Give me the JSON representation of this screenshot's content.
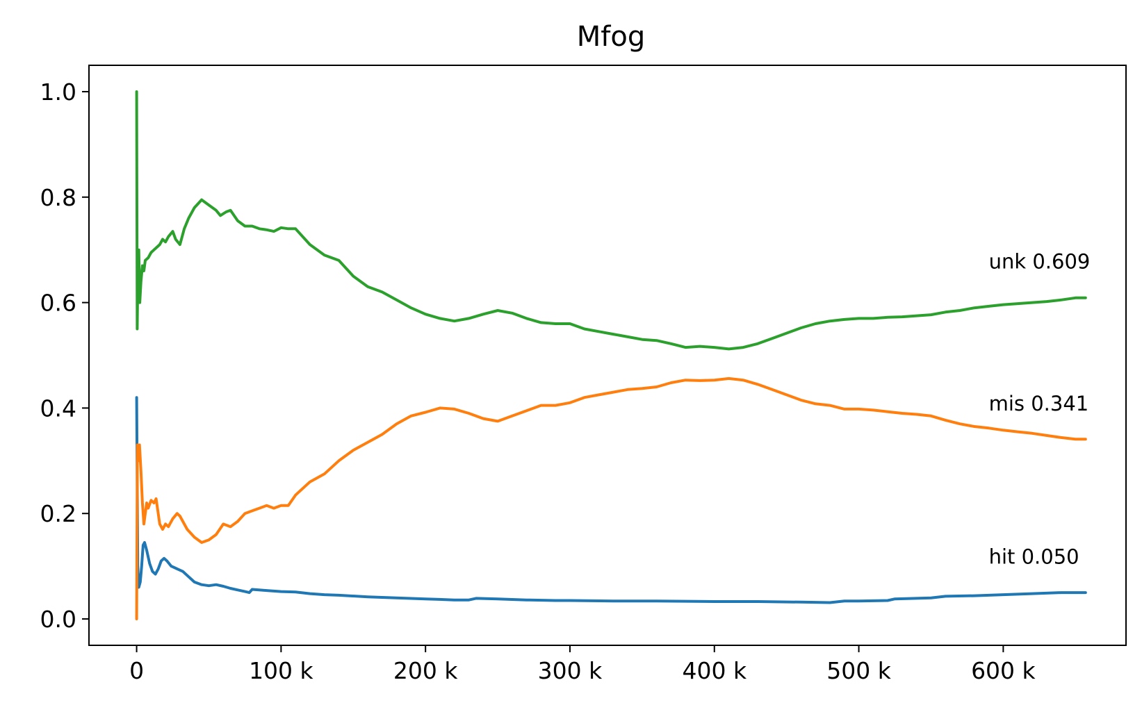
{
  "chart_data": {
    "type": "line",
    "title": "Mfog",
    "xlabel": "",
    "ylabel": "",
    "xlim": [
      -33000,
      685000
    ],
    "ylim": [
      -0.05,
      1.05
    ],
    "x_ticks": [
      0,
      100000,
      200000,
      300000,
      400000,
      500000,
      600000
    ],
    "x_tick_labels": [
      "0",
      "100 k",
      "200 k",
      "300 k",
      "400 k",
      "500 k",
      "600 k"
    ],
    "y_ticks": [
      0.0,
      0.2,
      0.4,
      0.6,
      0.8,
      1.0
    ],
    "y_tick_labels": [
      "0.0",
      "0.2",
      "0.4",
      "0.6",
      "0.8",
      "1.0"
    ],
    "grid": false,
    "legend": "none",
    "annotations": [
      {
        "text": "unk 0.609",
        "x": 590000,
        "y": 0.665
      },
      {
        "text": "mis 0.341",
        "x": 590000,
        "y": 0.395
      },
      {
        "text": "hit 0.050",
        "x": 590000,
        "y": 0.105
      }
    ],
    "series": [
      {
        "color": "#1f77b4",
        "points": [
          [
            0,
            0.42
          ],
          [
            300,
            0.3
          ],
          [
            800,
            0.1
          ],
          [
            1500,
            0.06
          ],
          [
            2500,
            0.07
          ],
          [
            3500,
            0.1
          ],
          [
            4500,
            0.14
          ],
          [
            5500,
            0.145
          ],
          [
            7000,
            0.13
          ],
          [
            9000,
            0.105
          ],
          [
            11000,
            0.09
          ],
          [
            13000,
            0.085
          ],
          [
            15000,
            0.095
          ],
          [
            17000,
            0.11
          ],
          [
            19000,
            0.115
          ],
          [
            21000,
            0.11
          ],
          [
            24000,
            0.1
          ],
          [
            28000,
            0.095
          ],
          [
            32000,
            0.09
          ],
          [
            36000,
            0.08
          ],
          [
            40000,
            0.07
          ],
          [
            45000,
            0.065
          ],
          [
            50000,
            0.063
          ],
          [
            55000,
            0.065
          ],
          [
            60000,
            0.062
          ],
          [
            65000,
            0.058
          ],
          [
            70000,
            0.055
          ],
          [
            75000,
            0.052
          ],
          [
            78000,
            0.05
          ],
          [
            80000,
            0.056
          ],
          [
            90000,
            0.054
          ],
          [
            100000,
            0.052
          ],
          [
            110000,
            0.051
          ],
          [
            120000,
            0.048
          ],
          [
            130000,
            0.046
          ],
          [
            140000,
            0.045
          ],
          [
            160000,
            0.042
          ],
          [
            180000,
            0.04
          ],
          [
            200000,
            0.038
          ],
          [
            220000,
            0.036
          ],
          [
            230000,
            0.036
          ],
          [
            235000,
            0.039
          ],
          [
            250000,
            0.038
          ],
          [
            270000,
            0.036
          ],
          [
            290000,
            0.035
          ],
          [
            300000,
            0.035
          ],
          [
            330000,
            0.034
          ],
          [
            360000,
            0.034
          ],
          [
            400000,
            0.033
          ],
          [
            430000,
            0.033
          ],
          [
            460000,
            0.032
          ],
          [
            480000,
            0.031
          ],
          [
            490000,
            0.034
          ],
          [
            500000,
            0.034
          ],
          [
            520000,
            0.035
          ],
          [
            525000,
            0.038
          ],
          [
            550000,
            0.04
          ],
          [
            560000,
            0.043
          ],
          [
            580000,
            0.044
          ],
          [
            600000,
            0.046
          ],
          [
            620000,
            0.048
          ],
          [
            640000,
            0.05
          ],
          [
            657000,
            0.05
          ]
        ]
      },
      {
        "color": "#ff7f0e",
        "points": [
          [
            0,
            0.0
          ],
          [
            500,
            0.33
          ],
          [
            1200,
            0.3
          ],
          [
            2000,
            0.33
          ],
          [
            3000,
            0.28
          ],
          [
            4000,
            0.22
          ],
          [
            5000,
            0.18
          ],
          [
            6000,
            0.2
          ],
          [
            7000,
            0.22
          ],
          [
            8000,
            0.21
          ],
          [
            10000,
            0.225
          ],
          [
            12000,
            0.22
          ],
          [
            13500,
            0.228
          ],
          [
            16000,
            0.18
          ],
          [
            18000,
            0.17
          ],
          [
            20000,
            0.18
          ],
          [
            22000,
            0.175
          ],
          [
            25000,
            0.19
          ],
          [
            28000,
            0.2
          ],
          [
            30000,
            0.195
          ],
          [
            35000,
            0.17
          ],
          [
            40000,
            0.155
          ],
          [
            45000,
            0.145
          ],
          [
            50000,
            0.15
          ],
          [
            55000,
            0.16
          ],
          [
            60000,
            0.18
          ],
          [
            65000,
            0.175
          ],
          [
            70000,
            0.185
          ],
          [
            75000,
            0.2
          ],
          [
            80000,
            0.205
          ],
          [
            85000,
            0.21
          ],
          [
            90000,
            0.215
          ],
          [
            95000,
            0.21
          ],
          [
            100000,
            0.215
          ],
          [
            105000,
            0.215
          ],
          [
            110000,
            0.235
          ],
          [
            120000,
            0.26
          ],
          [
            130000,
            0.275
          ],
          [
            140000,
            0.3
          ],
          [
            150000,
            0.32
          ],
          [
            160000,
            0.335
          ],
          [
            170000,
            0.35
          ],
          [
            180000,
            0.37
          ],
          [
            190000,
            0.385
          ],
          [
            200000,
            0.392
          ],
          [
            210000,
            0.4
          ],
          [
            220000,
            0.398
          ],
          [
            230000,
            0.39
          ],
          [
            240000,
            0.38
          ],
          [
            250000,
            0.375
          ],
          [
            260000,
            0.385
          ],
          [
            270000,
            0.395
          ],
          [
            280000,
            0.405
          ],
          [
            290000,
            0.405
          ],
          [
            300000,
            0.41
          ],
          [
            310000,
            0.42
          ],
          [
            320000,
            0.425
          ],
          [
            330000,
            0.43
          ],
          [
            340000,
            0.435
          ],
          [
            350000,
            0.437
          ],
          [
            360000,
            0.44
          ],
          [
            370000,
            0.448
          ],
          [
            380000,
            0.453
          ],
          [
            390000,
            0.452
          ],
          [
            400000,
            0.453
          ],
          [
            410000,
            0.456
          ],
          [
            420000,
            0.453
          ],
          [
            430000,
            0.445
          ],
          [
            440000,
            0.435
          ],
          [
            450000,
            0.425
          ],
          [
            460000,
            0.415
          ],
          [
            470000,
            0.408
          ],
          [
            480000,
            0.405
          ],
          [
            490000,
            0.398
          ],
          [
            500000,
            0.398
          ],
          [
            510000,
            0.396
          ],
          [
            520000,
            0.393
          ],
          [
            530000,
            0.39
          ],
          [
            540000,
            0.388
          ],
          [
            550000,
            0.385
          ],
          [
            560000,
            0.377
          ],
          [
            570000,
            0.37
          ],
          [
            580000,
            0.365
          ],
          [
            590000,
            0.362
          ],
          [
            600000,
            0.358
          ],
          [
            610000,
            0.355
          ],
          [
            620000,
            0.352
          ],
          [
            630000,
            0.348
          ],
          [
            640000,
            0.344
          ],
          [
            650000,
            0.341
          ],
          [
            657000,
            0.341
          ]
        ]
      },
      {
        "color": "#2ca02c",
        "points": [
          [
            0,
            1.0
          ],
          [
            400,
            0.55
          ],
          [
            900,
            0.66
          ],
          [
            1500,
            0.7
          ],
          [
            2200,
            0.6
          ],
          [
            3000,
            0.64
          ],
          [
            4000,
            0.67
          ],
          [
            5000,
            0.66
          ],
          [
            6000,
            0.68
          ],
          [
            8000,
            0.685
          ],
          [
            10000,
            0.695
          ],
          [
            12000,
            0.7
          ],
          [
            14000,
            0.705
          ],
          [
            16000,
            0.71
          ],
          [
            18000,
            0.72
          ],
          [
            20000,
            0.715
          ],
          [
            22000,
            0.725
          ],
          [
            25000,
            0.735
          ],
          [
            27000,
            0.72
          ],
          [
            30000,
            0.71
          ],
          [
            33000,
            0.74
          ],
          [
            36000,
            0.76
          ],
          [
            40000,
            0.78
          ],
          [
            45000,
            0.795
          ],
          [
            50000,
            0.785
          ],
          [
            55000,
            0.775
          ],
          [
            58000,
            0.765
          ],
          [
            62000,
            0.772
          ],
          [
            65000,
            0.775
          ],
          [
            70000,
            0.755
          ],
          [
            75000,
            0.745
          ],
          [
            80000,
            0.745
          ],
          [
            85000,
            0.74
          ],
          [
            90000,
            0.738
          ],
          [
            95000,
            0.735
          ],
          [
            100000,
            0.742
          ],
          [
            105000,
            0.74
          ],
          [
            110000,
            0.74
          ],
          [
            120000,
            0.71
          ],
          [
            130000,
            0.69
          ],
          [
            140000,
            0.68
          ],
          [
            150000,
            0.65
          ],
          [
            160000,
            0.63
          ],
          [
            170000,
            0.62
          ],
          [
            180000,
            0.605
          ],
          [
            190000,
            0.59
          ],
          [
            200000,
            0.578
          ],
          [
            210000,
            0.57
          ],
          [
            220000,
            0.565
          ],
          [
            230000,
            0.57
          ],
          [
            240000,
            0.578
          ],
          [
            250000,
            0.585
          ],
          [
            260000,
            0.58
          ],
          [
            270000,
            0.57
          ],
          [
            280000,
            0.562
          ],
          [
            290000,
            0.56
          ],
          [
            300000,
            0.56
          ],
          [
            310000,
            0.55
          ],
          [
            320000,
            0.545
          ],
          [
            330000,
            0.54
          ],
          [
            340000,
            0.535
          ],
          [
            350000,
            0.53
          ],
          [
            360000,
            0.528
          ],
          [
            370000,
            0.522
          ],
          [
            380000,
            0.515
          ],
          [
            390000,
            0.517
          ],
          [
            400000,
            0.515
          ],
          [
            410000,
            0.512
          ],
          [
            420000,
            0.515
          ],
          [
            430000,
            0.522
          ],
          [
            440000,
            0.532
          ],
          [
            450000,
            0.542
          ],
          [
            460000,
            0.552
          ],
          [
            470000,
            0.56
          ],
          [
            480000,
            0.565
          ],
          [
            490000,
            0.568
          ],
          [
            500000,
            0.57
          ],
          [
            510000,
            0.57
          ],
          [
            520000,
            0.572
          ],
          [
            530000,
            0.573
          ],
          [
            540000,
            0.575
          ],
          [
            550000,
            0.577
          ],
          [
            560000,
            0.582
          ],
          [
            570000,
            0.585
          ],
          [
            580000,
            0.59
          ],
          [
            590000,
            0.593
          ],
          [
            600000,
            0.596
          ],
          [
            610000,
            0.598
          ],
          [
            620000,
            0.6
          ],
          [
            630000,
            0.602
          ],
          [
            640000,
            0.605
          ],
          [
            650000,
            0.609
          ],
          [
            657000,
            0.609
          ]
        ]
      }
    ]
  }
}
